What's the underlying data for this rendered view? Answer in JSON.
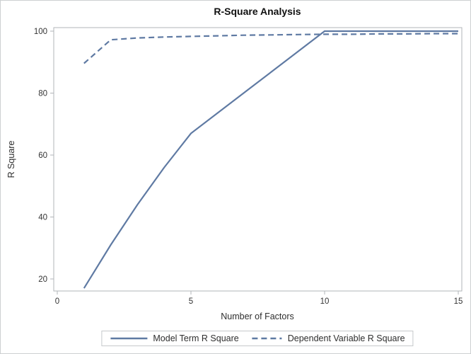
{
  "title": "R-Square Analysis",
  "colors": {
    "line": "#5f7aa3",
    "frame": "#b2b5b9",
    "tick_label": "#333333",
    "border": "#cdd0d2"
  },
  "chart_data": {
    "type": "line",
    "title": "R-Square Analysis",
    "xlabel": "Number of Factors",
    "ylabel": "R Square",
    "x": [
      1,
      2,
      3,
      4,
      5,
      6,
      7,
      8,
      9,
      10,
      11,
      12,
      13,
      14,
      15
    ],
    "series": [
      {
        "name": "Model Term R Square",
        "style": "solid",
        "values": [
          17,
          31,
          44,
          56,
          67,
          73.6,
          80.2,
          86.8,
          93.4,
          100,
          100,
          100,
          100,
          100,
          100
        ]
      },
      {
        "name": "Dependent Variable R Square",
        "style": "dashed",
        "values": [
          89.6,
          97.2,
          97.8,
          98.1,
          98.3,
          98.5,
          98.7,
          98.8,
          98.9,
          99,
          99,
          99.1,
          99.1,
          99.2,
          99.2
        ]
      }
    ],
    "x_ticks": [
      0,
      5,
      10,
      15
    ],
    "y_ticks": [
      20,
      40,
      60,
      80,
      100
    ],
    "xlim": [
      0,
      15
    ],
    "ylim": [
      16,
      101
    ],
    "grid": false,
    "legend_position": "bottom-center"
  }
}
